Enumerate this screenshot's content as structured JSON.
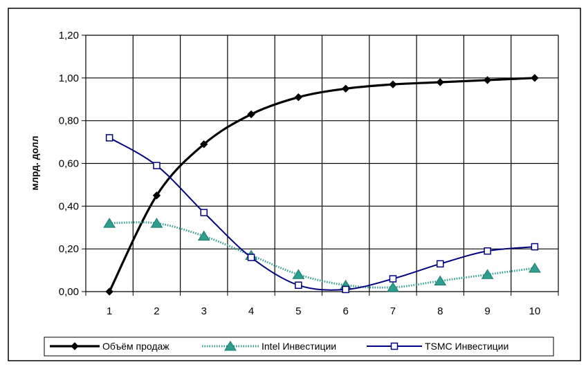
{
  "chart_data": {
    "type": "line",
    "title": "",
    "xlabel": "",
    "ylabel": "млрд. долл",
    "categories": [
      "1",
      "2",
      "3",
      "4",
      "5",
      "6",
      "7",
      "8",
      "9",
      "10"
    ],
    "ylim": [
      0,
      1.2
    ],
    "yticks": [
      "0,00",
      "0,20",
      "0,40",
      "0,60",
      "0,80",
      "1,00",
      "1,20"
    ],
    "grid": true,
    "legend_position": "bottom",
    "series": [
      {
        "name": "Объём продаж",
        "marker": "diamond",
        "style": "solid",
        "color": "#000000",
        "values": [
          0.0,
          0.45,
          0.69,
          0.83,
          0.91,
          0.95,
          0.97,
          0.98,
          0.99,
          1.0
        ]
      },
      {
        "name": "Intel Инвестиции",
        "marker": "triangle",
        "style": "dotted",
        "color": "#2E9E8E",
        "values": [
          0.32,
          0.32,
          0.26,
          0.17,
          0.08,
          0.03,
          0.02,
          0.05,
          0.08,
          0.11
        ]
      },
      {
        "name": "TSMC Инвестиции",
        "marker": "square",
        "style": "solid",
        "color": "#000080",
        "values": [
          0.72,
          0.59,
          0.37,
          0.16,
          0.03,
          0.01,
          0.06,
          0.13,
          0.19,
          0.21
        ]
      }
    ]
  }
}
